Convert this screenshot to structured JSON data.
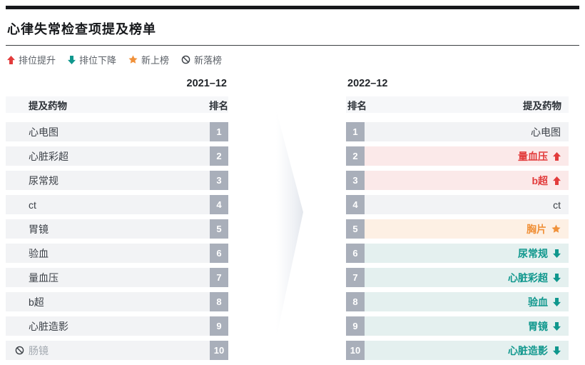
{
  "header": {
    "title": "心律失常检查项提及榜单"
  },
  "legend": {
    "items": [
      {
        "type": "up",
        "label": "排位提升"
      },
      {
        "type": "down",
        "label": "排位下降"
      },
      {
        "type": "star",
        "label": "新上榜"
      },
      {
        "type": "ban",
        "label": "新落榜"
      }
    ]
  },
  "colors": {
    "up": "#e23b3b",
    "down": "#0f978d",
    "new": "#f0913a",
    "dropped": "#3b4046",
    "badge": "#a9afba",
    "row_neutral": "#f2f3f5",
    "row_up": "#fbe9e9",
    "row_down": "#e4f0ef",
    "row_new": "#fdf0e4"
  },
  "left_table": {
    "period": "2021–12",
    "columns": {
      "drug": "提及药物",
      "rank": "排名"
    },
    "rows": [
      {
        "rank": "1",
        "label": "心电图",
        "status": "same"
      },
      {
        "rank": "2",
        "label": "心脏彩超",
        "status": "same"
      },
      {
        "rank": "3",
        "label": "尿常规",
        "status": "same"
      },
      {
        "rank": "4",
        "label": "ct",
        "status": "same"
      },
      {
        "rank": "5",
        "label": "胃镜",
        "status": "same"
      },
      {
        "rank": "6",
        "label": "验血",
        "status": "same"
      },
      {
        "rank": "7",
        "label": "量血压",
        "status": "same"
      },
      {
        "rank": "8",
        "label": "b超",
        "status": "same"
      },
      {
        "rank": "9",
        "label": "心脏造影",
        "status": "same"
      },
      {
        "rank": "10",
        "label": "肠镜",
        "status": "dropped"
      }
    ]
  },
  "right_table": {
    "period": "2022–12",
    "columns": {
      "rank": "排名",
      "drug": "提及药物"
    },
    "rows": [
      {
        "rank": "1",
        "label": "心电图",
        "status": "same"
      },
      {
        "rank": "2",
        "label": "量血压",
        "status": "up"
      },
      {
        "rank": "3",
        "label": "b超",
        "status": "up"
      },
      {
        "rank": "4",
        "label": "ct",
        "status": "same"
      },
      {
        "rank": "5",
        "label": "胸片",
        "status": "new"
      },
      {
        "rank": "6",
        "label": "尿常规",
        "status": "down"
      },
      {
        "rank": "7",
        "label": "心脏彩超",
        "status": "down"
      },
      {
        "rank": "8",
        "label": "验血",
        "status": "down"
      },
      {
        "rank": "9",
        "label": "胃镜",
        "status": "down"
      },
      {
        "rank": "10",
        "label": "心脏造影",
        "status": "down"
      }
    ]
  },
  "chart_data": {
    "type": "table",
    "title": "心律失常检查项提及榜单",
    "periods": [
      "2021–12",
      "2022–12"
    ],
    "columns": [
      "提及药物",
      "排名"
    ],
    "rankings": {
      "2021-12": [
        "心电图",
        "心脏彩超",
        "尿常规",
        "ct",
        "胃镜",
        "验血",
        "量血压",
        "b超",
        "心脏造影",
        "肠镜"
      ],
      "2022-12": [
        "心电图",
        "量血压",
        "b超",
        "ct",
        "胸片",
        "尿常规",
        "心脏彩超",
        "验血",
        "胃镜",
        "心脏造影"
      ]
    },
    "changes_2022": {
      "量血压": "up",
      "b超": "up",
      "胸片": "new",
      "尿常规": "down",
      "心脏彩超": "down",
      "验血": "down",
      "胃镜": "down",
      "心脏造影": "down",
      "肠镜": "dropped",
      "心电图": "same",
      "ct": "same"
    },
    "legend": [
      "排位提升",
      "排位下降",
      "新上榜",
      "新落榜"
    ]
  }
}
